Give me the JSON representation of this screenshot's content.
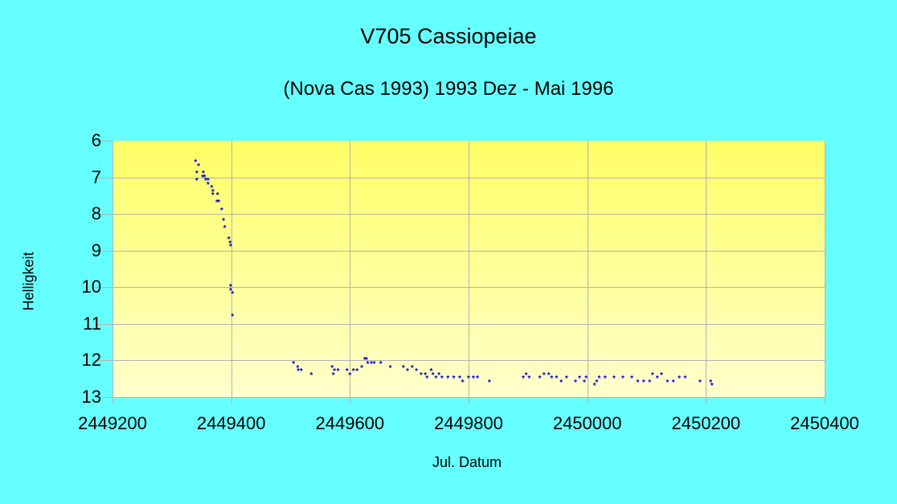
{
  "chart_data": {
    "type": "scatter",
    "title": "V705 Cassiopeiae",
    "subtitle": "(Nova Cas 1993) 1993 Dez - Mai 1996",
    "xlabel": "Jul. Datum",
    "ylabel": "Helligkeit",
    "xlim": [
      2449200,
      2450400
    ],
    "ylim": [
      6,
      13
    ],
    "y_inverted": true,
    "xticks": [
      "2449200",
      "2449400",
      "2449600",
      "2449800",
      "2450000",
      "2450200",
      "2450400"
    ],
    "yticks": [
      "6",
      "7",
      "8",
      "9",
      "10",
      "11",
      "12",
      "13"
    ],
    "grid": true,
    "legend": null,
    "marker_color": "#0000cc",
    "background_color": "#66ffff",
    "plot_gradient": [
      "#ffff66",
      "#ffffcc"
    ],
    "series": [
      {
        "name": "V705 Cas",
        "points": [
          [
            2449340,
            6.6
          ],
          [
            2449345,
            6.7
          ],
          [
            2449342,
            6.9
          ],
          [
            2449353,
            6.9
          ],
          [
            2449342,
            7.1
          ],
          [
            2449352,
            7.0
          ],
          [
            2449355,
            7.0
          ],
          [
            2449357,
            7.1
          ],
          [
            2449361,
            7.1
          ],
          [
            2449361,
            7.2
          ],
          [
            2449367,
            7.3
          ],
          [
            2449369,
            7.4
          ],
          [
            2449369,
            7.5
          ],
          [
            2449377,
            7.5
          ],
          [
            2449376,
            7.7
          ],
          [
            2449379,
            7.7
          ],
          [
            2449384,
            7.9
          ],
          [
            2449387,
            8.2
          ],
          [
            2449389,
            8.4
          ],
          [
            2449396,
            8.7
          ],
          [
            2449398,
            8.8
          ],
          [
            2449399,
            8.9
          ],
          [
            2449399,
            10.0
          ],
          [
            2449399,
            10.1
          ],
          [
            2449402,
            10.2
          ],
          [
            2449402,
            10.8
          ],
          [
            2449505,
            12.1
          ],
          [
            2449512,
            12.2
          ],
          [
            2449513,
            12.3
          ],
          [
            2449518,
            12.3
          ],
          [
            2449535,
            12.4
          ],
          [
            2449570,
            12.2
          ],
          [
            2449572,
            12.4
          ],
          [
            2449574,
            12.3
          ],
          [
            2449580,
            12.3
          ],
          [
            2449595,
            12.3
          ],
          [
            2449600,
            12.4
          ],
          [
            2449606,
            12.3
          ],
          [
            2449612,
            12.3
          ],
          [
            2449620,
            12.2
          ],
          [
            2449625,
            12.0
          ],
          [
            2449628,
            12.0
          ],
          [
            2449630,
            12.1
          ],
          [
            2449636,
            12.1
          ],
          [
            2449641,
            12.1
          ],
          [
            2449652,
            12.1
          ],
          [
            2449668,
            12.2
          ],
          [
            2449690,
            12.2
          ],
          [
            2449697,
            12.3
          ],
          [
            2449705,
            12.2
          ],
          [
            2449712,
            12.3
          ],
          [
            2449720,
            12.4
          ],
          [
            2449727,
            12.4
          ],
          [
            2449730,
            12.5
          ],
          [
            2449737,
            12.3
          ],
          [
            2449740,
            12.4
          ],
          [
            2449745,
            12.5
          ],
          [
            2449750,
            12.4
          ],
          [
            2449755,
            12.5
          ],
          [
            2449765,
            12.5
          ],
          [
            2449775,
            12.5
          ],
          [
            2449785,
            12.5
          ],
          [
            2449790,
            12.6
          ],
          [
            2449800,
            12.5
          ],
          [
            2449808,
            12.5
          ],
          [
            2449815,
            12.5
          ],
          [
            2449835,
            12.6
          ],
          [
            2449892,
            12.5
          ],
          [
            2449897,
            12.4
          ],
          [
            2449902,
            12.5
          ],
          [
            2449920,
            12.5
          ],
          [
            2449927,
            12.4
          ],
          [
            2449935,
            12.4
          ],
          [
            2449940,
            12.5
          ],
          [
            2449948,
            12.5
          ],
          [
            2449956,
            12.6
          ],
          [
            2449965,
            12.5
          ],
          [
            2449980,
            12.6
          ],
          [
            2449987,
            12.5
          ],
          [
            2449995,
            12.6
          ],
          [
            2449998,
            12.5
          ],
          [
            2450012,
            12.7
          ],
          [
            2450016,
            12.6
          ],
          [
            2450020,
            12.5
          ],
          [
            2450030,
            12.5
          ],
          [
            2450045,
            12.5
          ],
          [
            2450060,
            12.5
          ],
          [
            2450075,
            12.5
          ],
          [
            2450085,
            12.6
          ],
          [
            2450095,
            12.6
          ],
          [
            2450105,
            12.6
          ],
          [
            2450110,
            12.4
          ],
          [
            2450118,
            12.5
          ],
          [
            2450125,
            12.4
          ],
          [
            2450135,
            12.6
          ],
          [
            2450145,
            12.6
          ],
          [
            2450155,
            12.5
          ],
          [
            2450165,
            12.5
          ],
          [
            2450190,
            12.6
          ],
          [
            2450208,
            12.6
          ],
          [
            2450210,
            12.7
          ]
        ]
      }
    ]
  }
}
